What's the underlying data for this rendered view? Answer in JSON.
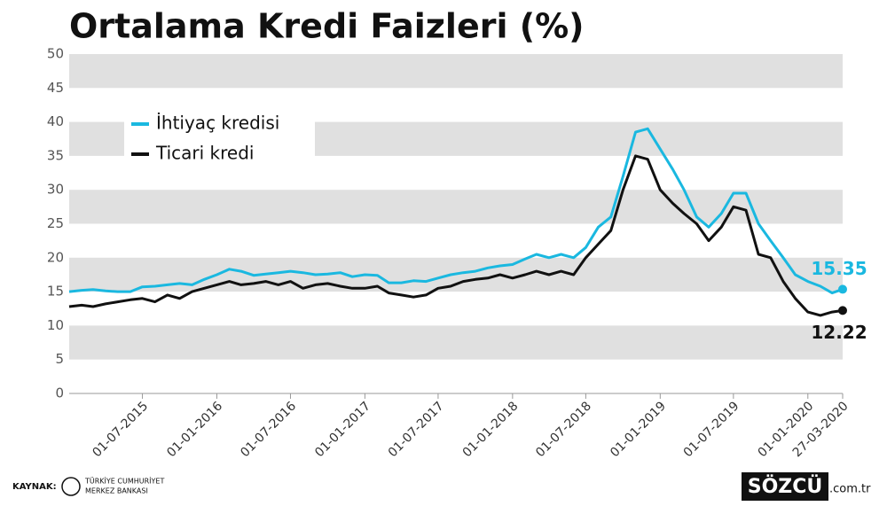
{
  "chart_data": {
    "type": "line",
    "title": "Ortalama Kredi Faizleri (%)",
    "x": [
      "01-01-2015",
      "01-02-2015",
      "01-03-2015",
      "01-04-2015",
      "01-05-2015",
      "01-06-2015",
      "01-07-2015",
      "01-08-2015",
      "01-09-2015",
      "01-10-2015",
      "01-11-2015",
      "01-12-2015",
      "01-01-2016",
      "01-02-2016",
      "01-03-2016",
      "01-04-2016",
      "01-05-2016",
      "01-06-2016",
      "01-07-2016",
      "01-08-2016",
      "01-09-2016",
      "01-10-2016",
      "01-11-2016",
      "01-12-2016",
      "01-01-2017",
      "01-02-2017",
      "01-03-2017",
      "01-04-2017",
      "01-05-2017",
      "01-06-2017",
      "01-07-2017",
      "01-08-2017",
      "01-09-2017",
      "01-10-2017",
      "01-11-2017",
      "01-12-2017",
      "01-01-2018",
      "01-02-2018",
      "01-03-2018",
      "01-04-2018",
      "01-05-2018",
      "01-06-2018",
      "01-07-2018",
      "01-08-2018",
      "01-09-2018",
      "01-10-2018",
      "01-11-2018",
      "01-12-2018",
      "01-01-2019",
      "01-02-2019",
      "01-03-2019",
      "01-04-2019",
      "01-05-2019",
      "01-06-2019",
      "01-07-2019",
      "01-08-2019",
      "01-09-2019",
      "01-10-2019",
      "01-11-2019",
      "01-12-2019",
      "01-01-2020",
      "01-02-2020",
      "01-03-2020",
      "27-03-2020"
    ],
    "series": [
      {
        "name": "İhtiyaç kredisi",
        "color": "#1ab8e0",
        "values": [
          15.0,
          15.2,
          15.3,
          15.1,
          15.0,
          15.0,
          15.7,
          15.8,
          16.0,
          16.2,
          16.0,
          16.8,
          17.5,
          18.3,
          18.0,
          17.4,
          17.6,
          17.8,
          18.0,
          17.8,
          17.5,
          17.6,
          17.8,
          17.2,
          17.5,
          17.4,
          16.3,
          16.3,
          16.6,
          16.5,
          17.0,
          17.5,
          17.8,
          18.0,
          18.5,
          18.8,
          19.0,
          19.8,
          20.5,
          20.0,
          20.5,
          20.0,
          21.5,
          24.5,
          26.0,
          32.0,
          38.5,
          39.0,
          36.0,
          33.0,
          30.0,
          26.0,
          24.5,
          26.5,
          29.5,
          29.5,
          25.0,
          22.5,
          20.0,
          17.5,
          16.5,
          15.8,
          14.8,
          15.35
        ]
      },
      {
        "name": "Ticari kredi",
        "color": "#111111",
        "values": [
          12.8,
          13.0,
          12.8,
          13.2,
          13.5,
          13.8,
          14.0,
          13.5,
          14.5,
          14.0,
          15.0,
          15.5,
          16.0,
          16.5,
          16.0,
          16.2,
          16.5,
          16.0,
          16.5,
          15.5,
          16.0,
          16.2,
          15.8,
          15.5,
          15.5,
          15.8,
          14.8,
          14.5,
          14.2,
          14.5,
          15.5,
          15.8,
          16.5,
          16.8,
          17.0,
          17.5,
          17.0,
          17.5,
          18.0,
          17.5,
          18.0,
          17.5,
          20.0,
          22.0,
          24.0,
          30.0,
          35.0,
          34.5,
          30.0,
          28.0,
          26.5,
          25.0,
          22.5,
          24.5,
          27.5,
          27.0,
          20.5,
          20.0,
          16.5,
          14.0,
          12.0,
          11.5,
          12.0,
          12.22
        ]
      }
    ],
    "xlim": [
      "01-01-2015",
      "27-03-2020"
    ],
    "xticks": [
      "01-07-2015",
      "01-01-2016",
      "01-07-2016",
      "01-01-2017",
      "01-07-2017",
      "01-01-2018",
      "01-07-2018",
      "01-01-2019",
      "01-07-2019",
      "01-01-2020",
      "27-03-2020"
    ],
    "ylim": [
      0,
      50
    ],
    "yticks": [
      0,
      5,
      10,
      15,
      20,
      25,
      30,
      35,
      40,
      45,
      50
    ],
    "legend": "upper-left"
  },
  "source": {
    "label": "KAYNAK:",
    "name_lines": [
      "TÜRKİYE CUMHURİYET",
      "MERKEZ BANKASI"
    ]
  },
  "brand": {
    "name": "SÖZCÜ",
    "suffix": ".com.tr"
  }
}
